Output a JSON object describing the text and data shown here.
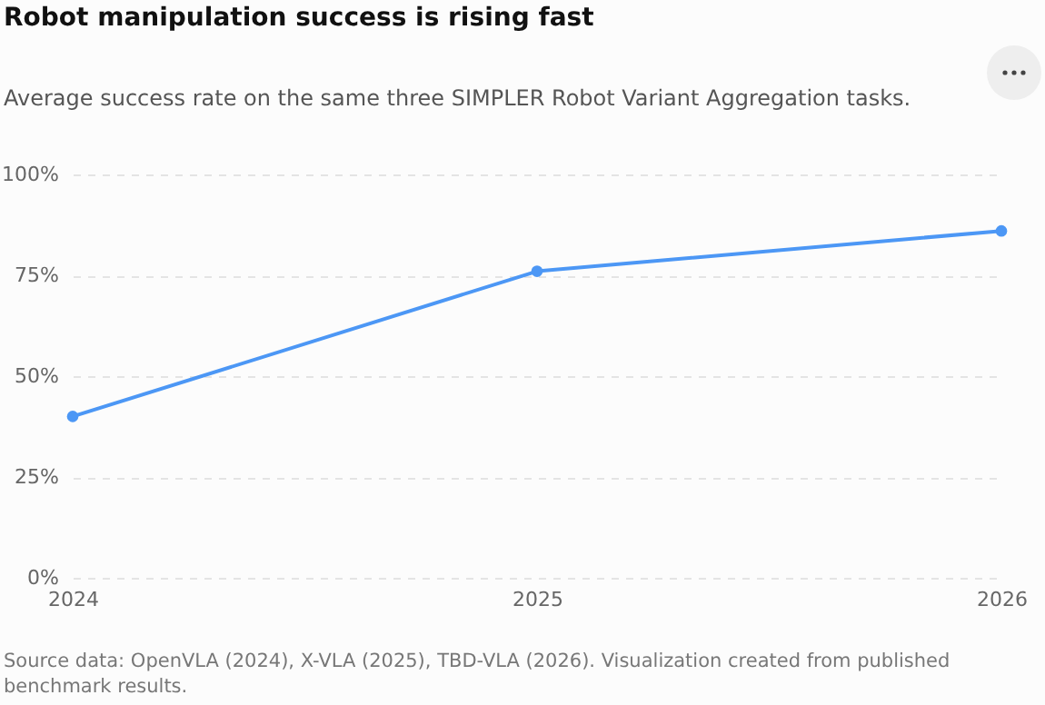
{
  "chart_data": {
    "type": "line",
    "title": "Robot manipulation success is rising fast",
    "subtitle": "Average success rate on the same three SIMPLER Robot Variant Aggregation tasks.",
    "categories": [
      "2024",
      "2025",
      "2026"
    ],
    "series": [
      {
        "color": "#4c97f5",
        "values": [
          40,
          76,
          86
        ]
      }
    ],
    "ylim": [
      0,
      100
    ],
    "yticks": [
      {
        "value": 0,
        "label": "0%"
      },
      {
        "value": 25,
        "label": "25%"
      },
      {
        "value": 50,
        "label": "50%"
      },
      {
        "value": 75,
        "label": "75%"
      },
      {
        "value": 100,
        "label": "100%"
      }
    ],
    "grid": "y",
    "marker": "circle",
    "line_style": "solid",
    "legend": false,
    "annotations": [
      "Source data: OpenVLA (2024), X-VLA (2025), TBD-VLA (2026). Visualization created from published benchmark results."
    ]
  }
}
